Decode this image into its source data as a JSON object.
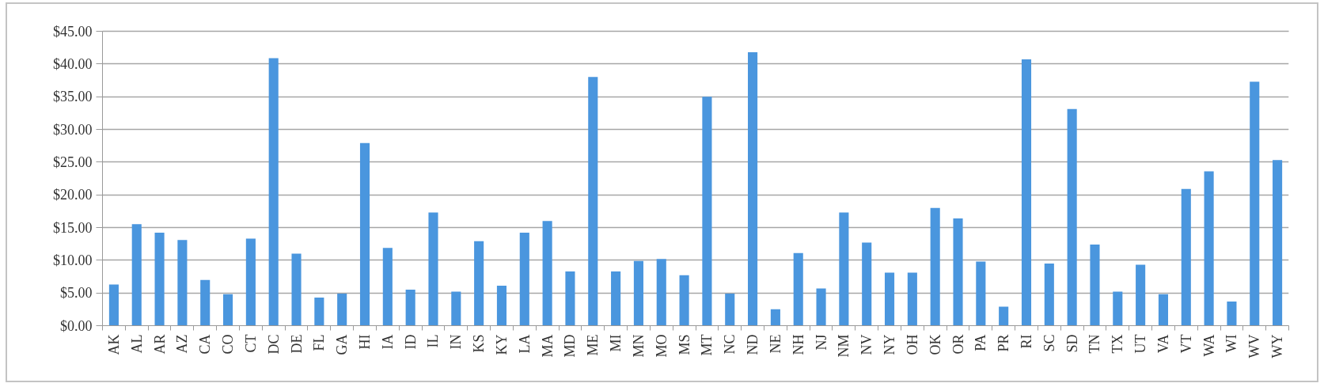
{
  "chart_data": {
    "type": "bar",
    "categories": [
      "AK",
      "AL",
      "AR",
      "AZ",
      "CA",
      "CO",
      "CT",
      "DC",
      "DE",
      "FL",
      "GA",
      "HI",
      "IA",
      "ID",
      "IL",
      "IN",
      "KS",
      "KY",
      "LA",
      "MA",
      "MD",
      "ME",
      "MI",
      "MN",
      "MO",
      "MS",
      "MT",
      "NC",
      "ND",
      "NE",
      "NH",
      "NJ",
      "NM",
      "NV",
      "NY",
      "OH",
      "OK",
      "OR",
      "PA",
      "PR",
      "RI",
      "SC",
      "SD",
      "TN",
      "TX",
      "UT",
      "VA",
      "VT",
      "WA",
      "WI",
      "WV",
      "WY"
    ],
    "values": [
      6.3,
      15.5,
      14.2,
      13.1,
      7.0,
      4.8,
      13.3,
      40.9,
      11.0,
      4.3,
      4.9,
      27.9,
      11.9,
      5.5,
      17.3,
      5.2,
      12.9,
      6.1,
      14.2,
      16.0,
      8.3,
      38.0,
      8.3,
      9.9,
      10.2,
      7.7,
      35.0,
      4.9,
      41.8,
      2.5,
      11.1,
      5.7,
      17.3,
      12.7,
      8.1,
      8.1,
      18.0,
      16.4,
      9.8,
      2.9,
      40.7,
      9.5,
      33.1,
      12.4,
      5.2,
      9.3,
      4.8,
      20.9,
      23.6,
      3.7,
      37.3,
      25.3
    ],
    "color": "#4a96de",
    "ylim": [
      0,
      45
    ],
    "yticks": [
      {
        "value": 0,
        "label": "$0.00"
      },
      {
        "value": 5,
        "label": "$5.00"
      },
      {
        "value": 10,
        "label": "$10.00"
      },
      {
        "value": 15,
        "label": "$15.00"
      },
      {
        "value": 20,
        "label": "$20.00"
      },
      {
        "value": 25,
        "label": "$25.00"
      },
      {
        "value": 30,
        "label": "$30.00"
      },
      {
        "value": 35,
        "label": "$35.00"
      },
      {
        "value": 40,
        "label": "$40.00"
      },
      {
        "value": 45,
        "label": "$45.00"
      }
    ],
    "grid": "y"
  }
}
